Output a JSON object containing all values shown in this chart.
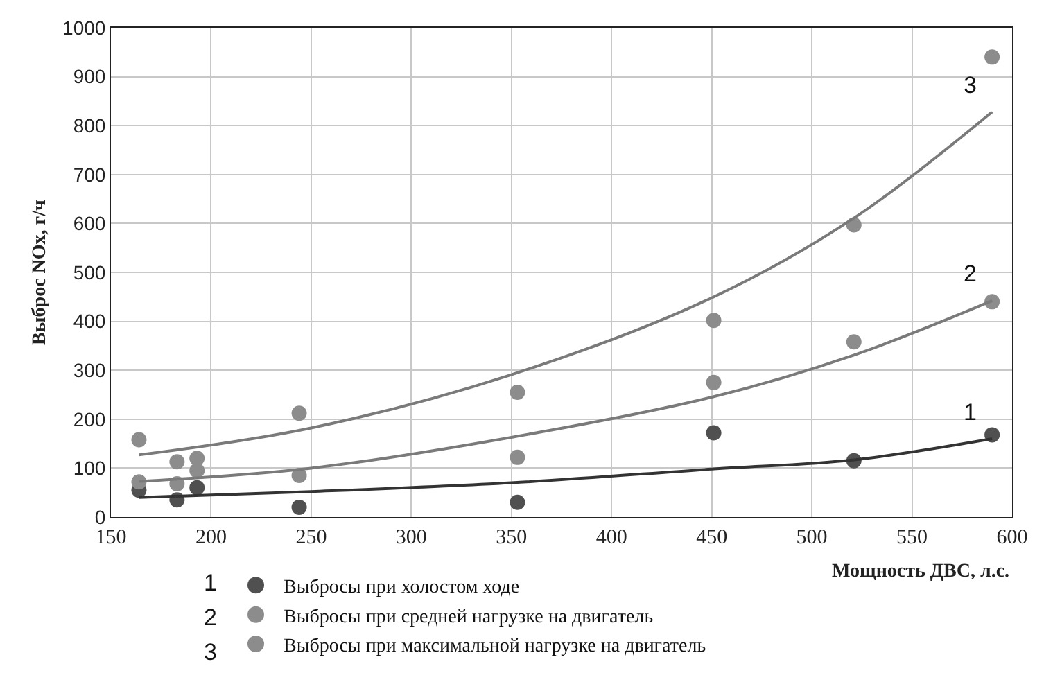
{
  "chart_data": {
    "type": "scatter",
    "xlabel": "Мощность ДВС, л.с.",
    "ylabel": "Выброс NOx, г/ч",
    "x": [
      164,
      183,
      193,
      244,
      353,
      451,
      521,
      590
    ],
    "series": [
      {
        "name": "Выбросы при холостом ходе",
        "color": "#505050",
        "values": [
          55,
          35,
          60,
          20,
          30,
          172,
          115,
          168
        ]
      },
      {
        "name": "Выбросы при средней нагрузке на двигатель",
        "color": "#8c8c8c",
        "values": [
          72,
          68,
          95,
          85,
          122,
          275,
          358,
          440
        ]
      },
      {
        "name": "Выбросы при максимальной нагрузке на двигатель",
        "color": "#8c8c8c",
        "values": [
          158,
          113,
          120,
          212,
          255,
          402,
          597,
          940
        ]
      },
      {
        "type": "line",
        "marker": "none",
        "color": "#333333",
        "x": [
          164,
          250,
          350,
          450,
          521,
          590
        ],
        "values": [
          40,
          52,
          70,
          98,
          117,
          160
        ]
      },
      {
        "type": "line",
        "marker": "none",
        "color": "#7a7a7a",
        "x": [
          164,
          250,
          350,
          450,
          521,
          590
        ],
        "values": [
          73,
          100,
          163,
          245,
          331,
          442
        ]
      },
      {
        "type": "line",
        "marker": "none",
        "color": "#7a7a7a",
        "x": [
          164,
          250,
          350,
          450,
          521,
          590
        ],
        "values": [
          127,
          182,
          291,
          448,
          611,
          828
        ]
      }
    ],
    "xlim": [
      150,
      600
    ],
    "xticks": [
      150,
      200,
      250,
      300,
      350,
      400,
      450,
      500,
      550,
      600
    ],
    "ylim": [
      0,
      1000
    ],
    "yticks": [
      0,
      100,
      200,
      300,
      400,
      500,
      600,
      700,
      800,
      900,
      1000
    ],
    "grid": true,
    "legend": "bottom left",
    "marker": "circle",
    "annotations": [
      "1",
      "2",
      "3",
      "1",
      "2",
      "3"
    ]
  }
}
